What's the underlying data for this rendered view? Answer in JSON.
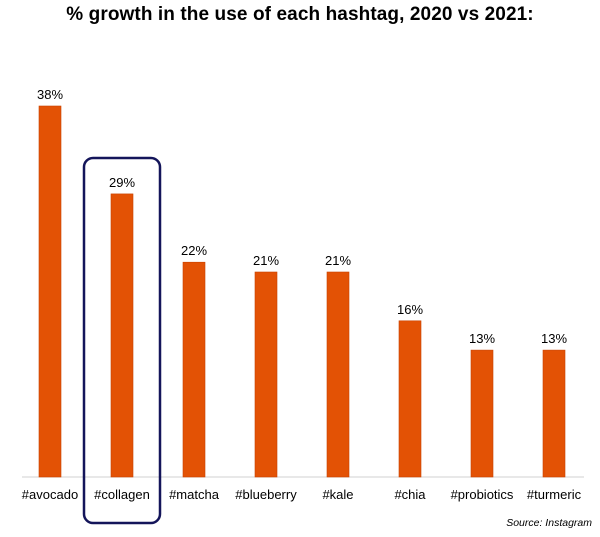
{
  "chart_data": {
    "type": "bar",
    "title": "% growth in the use of each hashtag, 2020 vs 2021:",
    "categories": [
      "#avocado",
      "#collagen",
      "#matcha",
      "#blueberry",
      "#kale",
      "#chia",
      "#probiotics",
      "#turmeric"
    ],
    "values": [
      38,
      29,
      22,
      21,
      21,
      16,
      13,
      13
    ],
    "value_labels": [
      "38%",
      "29%",
      "22%",
      "21%",
      "21%",
      "16%",
      "13%",
      "13%"
    ],
    "unit": "%",
    "highlighted_category": "#collagen",
    "xlabel": "",
    "ylabel": "",
    "ylim": [
      0,
      38
    ],
    "grid": false,
    "legend": "none"
  },
  "colors": {
    "bar": "#E35205",
    "bar_edge": "#C94300",
    "highlight_box": "#14155A",
    "baseline": "#D0D0D0",
    "text": "#000000"
  },
  "source": "Source: Instagram"
}
